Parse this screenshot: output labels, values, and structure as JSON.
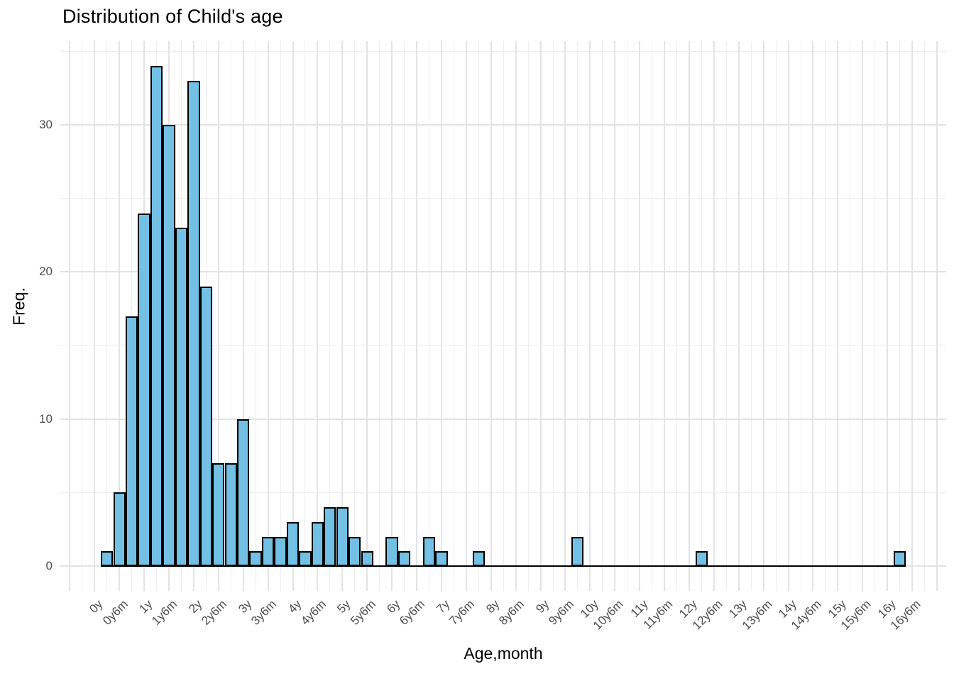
{
  "title": "Distribution of Child's age",
  "chart_data": {
    "type": "bar",
    "subtype": "histogram",
    "title": "Distribution of Child's age",
    "xlabel": "Age,month",
    "ylabel": "Freq.",
    "grid": "on",
    "legend": "none",
    "y_ticks": [
      0,
      10,
      20,
      30
    ],
    "y_minor_ticks": [
      5,
      15,
      25,
      35
    ],
    "ylim": [
      0,
      35
    ],
    "bin_width_months": 3,
    "x_tick_interval_months": 6,
    "x_tick_labels": [
      "0y",
      "0y6m",
      "1y",
      "1y6m",
      "2y",
      "2y6m",
      "3y",
      "3y6m",
      "4y",
      "4y6m",
      "5y",
      "5y6m",
      "6y",
      "6y6m",
      "7y",
      "7y6m",
      "8y",
      "8y6m",
      "9y",
      "9y6m",
      "10y",
      "10y6m",
      "11y",
      "11y6m",
      "12y",
      "12y6m",
      "13y",
      "13y6m",
      "14y",
      "14y6m",
      "15y",
      "15y6m",
      "16y",
      "16y6m"
    ],
    "bins": [
      {
        "months": 3,
        "count": 1
      },
      {
        "months": 6,
        "count": 5
      },
      {
        "months": 9,
        "count": 17
      },
      {
        "months": 12,
        "count": 24
      },
      {
        "months": 15,
        "count": 34
      },
      {
        "months": 18,
        "count": 30
      },
      {
        "months": 21,
        "count": 23
      },
      {
        "months": 24,
        "count": 33
      },
      {
        "months": 27,
        "count": 19
      },
      {
        "months": 30,
        "count": 7
      },
      {
        "months": 33,
        "count": 7
      },
      {
        "months": 36,
        "count": 10
      },
      {
        "months": 39,
        "count": 1
      },
      {
        "months": 42,
        "count": 2
      },
      {
        "months": 45,
        "count": 2
      },
      {
        "months": 48,
        "count": 3
      },
      {
        "months": 51,
        "count": 1
      },
      {
        "months": 54,
        "count": 3
      },
      {
        "months": 57,
        "count": 4
      },
      {
        "months": 60,
        "count": 4
      },
      {
        "months": 63,
        "count": 2
      },
      {
        "months": 66,
        "count": 1
      },
      {
        "months": 72,
        "count": 2
      },
      {
        "months": 75,
        "count": 1
      },
      {
        "months": 81,
        "count": 2
      },
      {
        "months": 84,
        "count": 1
      },
      {
        "months": 93,
        "count": 1
      },
      {
        "months": 117,
        "count": 2
      },
      {
        "months": 147,
        "count": 1
      },
      {
        "months": 195,
        "count": 1
      }
    ],
    "colors": {
      "bar_fill": "#72c0e4",
      "bar_stroke": "#000000",
      "grid_major": "#e3e3e3",
      "grid_minor": "#ededed",
      "tick_label": "#4d4d4d",
      "text": "#000000",
      "background": "#ffffff"
    }
  }
}
